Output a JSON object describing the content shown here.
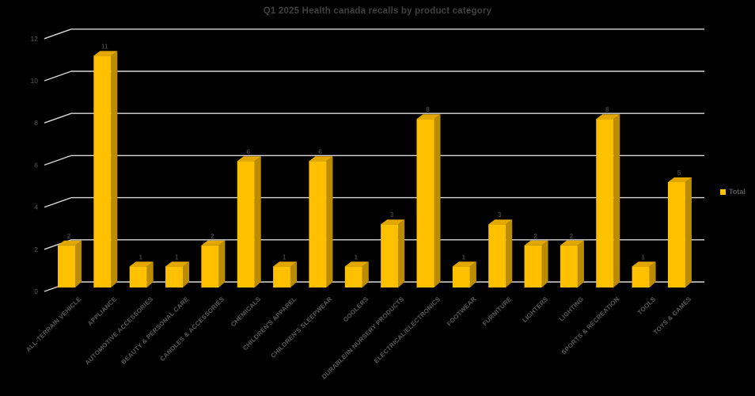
{
  "title": "Q1 2025 Health canada recalls by product category",
  "legend": {
    "label": "Total"
  },
  "colors": {
    "background": "#000000",
    "bar_front": "#FFC000",
    "bar_side": "#BC8C00",
    "bar_top": "#E3A800",
    "gridline": "#D9D9D9",
    "axis_text": "#595959",
    "title_text": "#404040",
    "value_text": "#404040",
    "legend_text": "#595959"
  },
  "chart_data": {
    "type": "bar",
    "style": "3d-column",
    "title": "Q1 2025 Health canada recalls by product category",
    "categories": [
      "ALL-TERRAIN VEHICLE",
      "APPLIANCE",
      "AUTOMOTIVE ACCESSORIES",
      "BEAUTY & PERSONAL CARE",
      "CANDLES & ACCESSORIES",
      "CHEMICALS",
      "CHILDREN'S APPAREL",
      "CHILDREN'S SLEEPWEAR",
      "COOLERS",
      "DURABLE/IN NURSERY PRODUCTS",
      "ELECTRICAL/ELECTRONICS",
      "FOOTWEAR",
      "FURNITURE",
      "LIGHTERS",
      "LIGHTING",
      "SPORTS & RECREATION",
      "TOOLS",
      "TOYS & GAMES"
    ],
    "series": [
      {
        "name": "Total",
        "values": [
          2,
          11,
          1,
          1,
          2,
          6,
          1,
          6,
          1,
          3,
          8,
          1,
          3,
          2,
          2,
          8,
          1,
          5
        ]
      }
    ],
    "xlabel": "",
    "ylabel": "",
    "ylim": [
      0,
      12
    ],
    "yticks": [
      0,
      2,
      4,
      6,
      8,
      10,
      12
    ],
    "grid": true,
    "legend_position": "right",
    "value_labels_shown": true
  }
}
